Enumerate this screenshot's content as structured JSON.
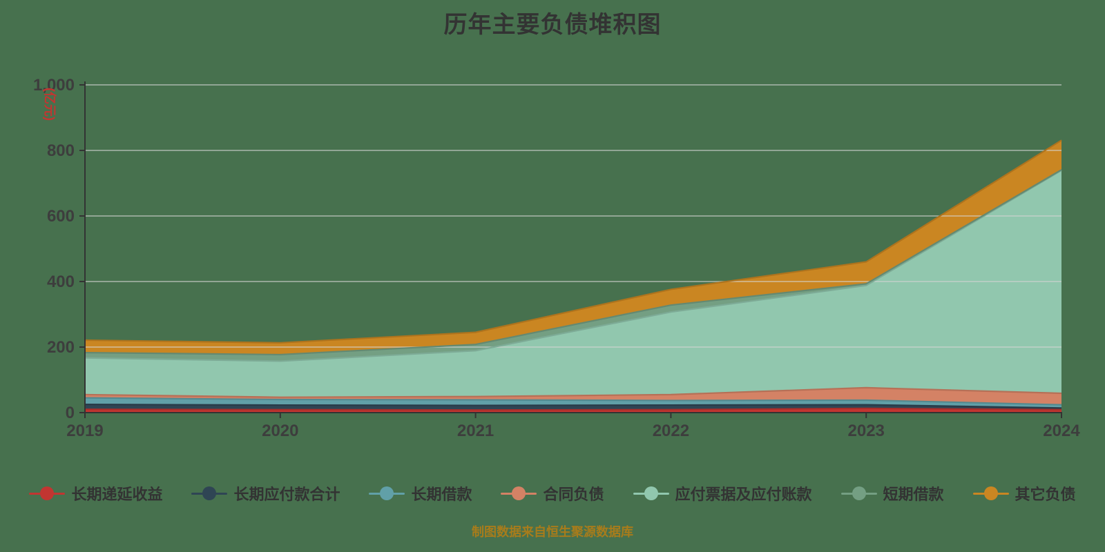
{
  "page": {
    "background": "#47714e"
  },
  "header": {
    "title": "历年主要负债堆积图"
  },
  "y_axis": {
    "name": "(亿元)",
    "name_color": "#c23531",
    "tick_values": [
      0,
      200,
      400,
      600,
      800,
      1000
    ],
    "tick_labels": [
      "0",
      "200",
      "400",
      "600",
      "800",
      "1,000"
    ]
  },
  "x_axis": {
    "labels": [
      "2019",
      "2020",
      "2021",
      "2022",
      "2023",
      "2024"
    ]
  },
  "caption": {
    "text": "制图数据来自恒生聚源数据库",
    "color": "#a87c1b"
  },
  "legend": {
    "marker_style": "line-with-circle"
  },
  "chart_data": {
    "type": "area",
    "stacked": true,
    "title": "历年主要负债堆积图",
    "x": [
      2019,
      2020,
      2021,
      2022,
      2023,
      2024
    ],
    "xlabel": "",
    "ylabel": "(亿元)",
    "ylim": [
      0,
      1000
    ],
    "grid": true,
    "legend_position": "bottom",
    "series": [
      {
        "name": "长期递延收益",
        "color": "#c23531",
        "values": [
          10,
          9,
          8,
          9,
          13,
          9
        ]
      },
      {
        "name": "长期应付款合计",
        "color": "#2f4554",
        "values": [
          15,
          14,
          14,
          14,
          11,
          5
        ]
      },
      {
        "name": "长期借款",
        "color": "#61a0a8",
        "values": [
          20,
          17,
          17,
          14,
          14,
          10
        ]
      },
      {
        "name": "合同负债",
        "color": "#d48265",
        "values": [
          10,
          7,
          10,
          18,
          38,
          35
        ]
      },
      {
        "name": "应付票据及应付账款",
        "color": "#91c7ae",
        "values": [
          112,
          110,
          140,
          252,
          312,
          680
        ]
      },
      {
        "name": "短期借款",
        "color": "#749f83",
        "values": [
          16,
          20,
          19,
          21,
          5,
          2
        ]
      },
      {
        "name": "其它负债",
        "color": "#ca8622",
        "values": [
          38,
          36,
          37,
          48,
          67,
          90
        ]
      }
    ],
    "totals": [
      221,
      213,
      245,
      376,
      460,
      831
    ]
  }
}
